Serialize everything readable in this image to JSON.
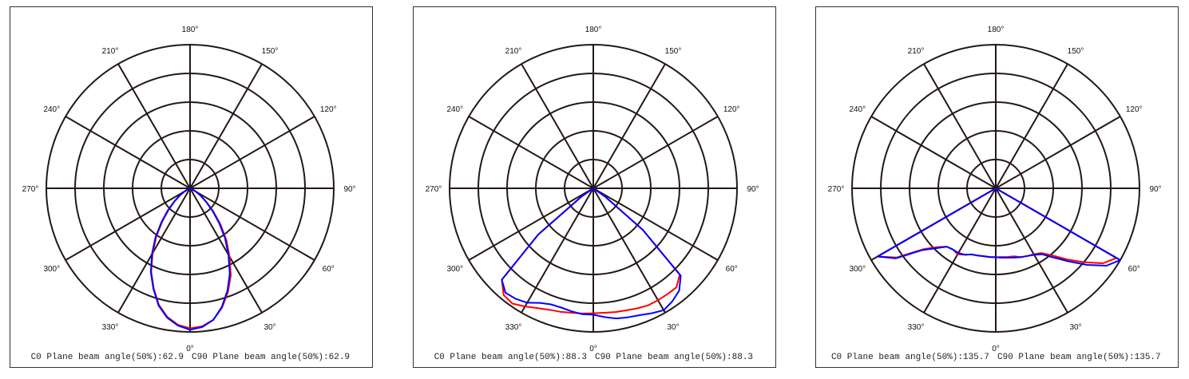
{
  "chart_data": [
    {
      "type": "polar-line",
      "angle_labels": [
        "0°",
        "30°",
        "60°",
        "90°",
        "120°",
        "150°",
        "180°",
        "210°",
        "240°",
        "270°",
        "300°",
        "330°"
      ],
      "rings": 5,
      "angle_samples_deg": [
        -70,
        -65,
        -60,
        -55,
        -50,
        -45,
        -40,
        -35,
        -30,
        -25,
        -20,
        -15,
        -10,
        -5,
        0,
        5,
        10,
        15,
        20,
        25,
        30,
        35,
        40,
        45,
        50,
        55,
        60,
        65,
        70
      ],
      "series": [
        {
          "name": "C0",
          "color": "#ff0000",
          "values": [
            0,
            0.015,
            0.045,
            0.085,
            0.14,
            0.21,
            0.3,
            0.41,
            0.52,
            0.64,
            0.74,
            0.84,
            0.91,
            0.955,
            0.975,
            0.965,
            0.93,
            0.86,
            0.77,
            0.67,
            0.55,
            0.44,
            0.33,
            0.23,
            0.15,
            0.095,
            0.05,
            0.02,
            0
          ]
        },
        {
          "name": "C90",
          "color": "#0000ff",
          "values": [
            0,
            0.02,
            0.05,
            0.09,
            0.145,
            0.22,
            0.31,
            0.42,
            0.53,
            0.645,
            0.745,
            0.845,
            0.915,
            0.96,
            0.985,
            0.97,
            0.93,
            0.855,
            0.76,
            0.655,
            0.535,
            0.425,
            0.315,
            0.22,
            0.145,
            0.09,
            0.05,
            0.02,
            0
          ]
        }
      ],
      "caption_c0": "C0 Plane beam angle(50%):62.9",
      "caption_c90": "C90 Plane beam angle(50%):62.9"
    },
    {
      "type": "polar-line",
      "angle_labels": [
        "0°",
        "30°",
        "60°",
        "90°",
        "120°",
        "150°",
        "180°",
        "210°",
        "240°",
        "270°",
        "300°",
        "330°"
      ],
      "rings": 5,
      "angle_samples_deg": [
        -70,
        -65,
        -60,
        -55,
        -50,
        -45,
        -40,
        -35,
        -30,
        -25,
        -20,
        -15,
        -10,
        -5,
        0,
        5,
        10,
        15,
        20,
        25,
        30,
        35,
        40,
        45,
        50,
        55,
        60,
        65,
        70
      ],
      "series": [
        {
          "name": "C0",
          "color": "#ff0000",
          "values": [
            0,
            0,
            0,
            0.1,
            0.5,
            0.9,
            0.97,
            0.98,
            0.95,
            0.92,
            0.9,
            0.89,
            0.88,
            0.875,
            0.87,
            0.87,
            0.875,
            0.88,
            0.89,
            0.9,
            0.9,
            0.9,
            0.9,
            0.85,
            0.45,
            0.1,
            0,
            0,
            0
          ]
        },
        {
          "name": "C90",
          "color": "#0000ff",
          "values": [
            0,
            0,
            0,
            0.1,
            0.5,
            0.9,
            0.95,
            0.94,
            0.92,
            0.88,
            0.86,
            0.86,
            0.87,
            0.88,
            0.88,
            0.9,
            0.92,
            0.93,
            0.94,
            0.96,
            0.98,
            0.96,
            0.93,
            0.86,
            0.45,
            0.1,
            0,
            0,
            0
          ]
        }
      ],
      "caption_c0": "C0 Plane beam angle(50%):88.3",
      "caption_c90": "C90 Plane beam angle(50%):88.3"
    },
    {
      "type": "polar-line",
      "angle_labels": [
        "0°",
        "30°",
        "60°",
        "90°",
        "120°",
        "150°",
        "180°",
        "210°",
        "240°",
        "270°",
        "300°",
        "330°"
      ],
      "rings": 5,
      "angle_samples_deg": [
        -70,
        -65,
        -60,
        -55,
        -50,
        -45,
        -40,
        -35,
        -30,
        -25,
        -20,
        -15,
        -10,
        -5,
        0,
        5,
        10,
        15,
        20,
        25,
        30,
        35,
        40,
        45,
        50,
        55,
        60,
        65,
        70
      ],
      "series": [
        {
          "name": "C0",
          "color": "#ff0000",
          "values": [
            0,
            0,
            0.95,
            0.84,
            0.66,
            0.58,
            0.53,
            0.52,
            0.53,
            0.51,
            0.49,
            0.485,
            0.48,
            0.48,
            0.48,
            0.48,
            0.485,
            0.49,
            0.51,
            0.52,
            0.53,
            0.55,
            0.61,
            0.7,
            0.8,
            0.91,
            0.97,
            0,
            0
          ]
        },
        {
          "name": "C90",
          "color": "#0000ff",
          "values": [
            0,
            0,
            0.95,
            0.85,
            0.67,
            0.59,
            0.53,
            0.52,
            0.52,
            0.51,
            0.49,
            0.485,
            0.48,
            0.48,
            0.48,
            0.485,
            0.49,
            0.5,
            0.51,
            0.52,
            0.535,
            0.56,
            0.63,
            0.72,
            0.83,
            0.94,
            1.0,
            0,
            0
          ]
        }
      ],
      "caption_c0": "C0 Plane beam angle(50%):135.7",
      "caption_c90": "C90 Plane beam angle(50%):135.7"
    }
  ]
}
